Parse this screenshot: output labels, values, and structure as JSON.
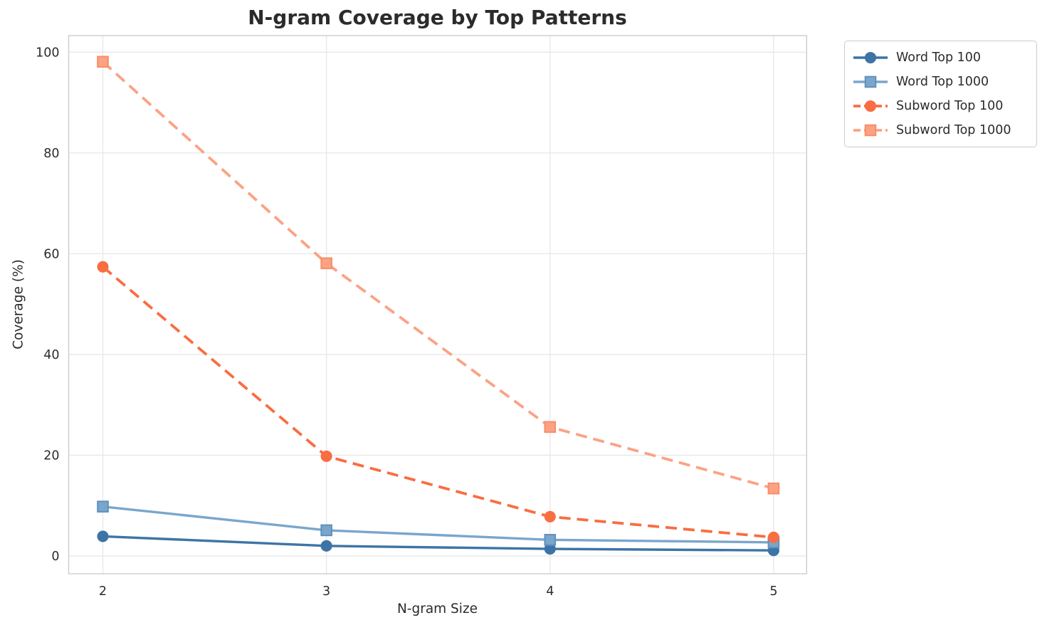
{
  "chart_data": {
    "type": "line",
    "title": "N-gram Coverage by Top Patterns",
    "xlabel": "N-gram Size",
    "ylabel": "Coverage (%)",
    "x": [
      2,
      3,
      4,
      5
    ],
    "xtick_labels": [
      "2",
      "3",
      "4",
      "5"
    ],
    "yticks": [
      0,
      20,
      40,
      60,
      80,
      100
    ],
    "xlim": [
      1.85,
      5.15
    ],
    "ylim": [
      -3.5,
      103.3
    ],
    "grid": true,
    "legend_position": "outside-upper-right",
    "series": [
      {
        "name": "Word Top 100",
        "values": [
          3.9,
          2.0,
          1.4,
          1.1
        ],
        "color": "#3d74a6",
        "marker": "circle",
        "line_style": "solid",
        "marker_edge": "#3d74a6"
      },
      {
        "name": "Word Top 1000",
        "values": [
          9.8,
          5.1,
          3.2,
          2.7
        ],
        "color": "#7aa6cb",
        "marker": "square",
        "line_style": "solid",
        "marker_edge": "#5f91bd"
      },
      {
        "name": "Subword Top 100",
        "values": [
          57.4,
          19.8,
          7.8,
          3.7
        ],
        "color": "#f96d42",
        "marker": "circle",
        "line_style": "dashed",
        "marker_edge": "#f96d42"
      },
      {
        "name": "Subword Top 1000",
        "values": [
          98.1,
          58.1,
          25.6,
          13.4
        ],
        "color": "#fba285",
        "marker": "square",
        "line_style": "dashed",
        "marker_edge": "#f98d66"
      }
    ],
    "style": {
      "grid_color": "#e7e7e7",
      "spine_color": "#cccccc",
      "text_color": "#2b2b2b",
      "background": "#ffffff"
    }
  }
}
